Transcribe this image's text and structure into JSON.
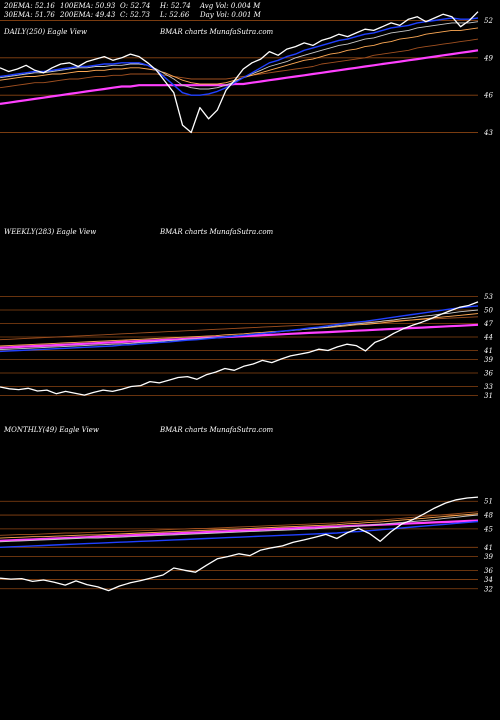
{
  "header": {
    "row1": [
      "20EMA: 52.16",
      "100EMA: 50.93",
      "O: 52.74",
      "H: 52.74",
      "Avg Vol: 0.004  M"
    ],
    "row2": [
      "30EMA: 51.76",
      "200EMA: 49.43",
      "C: 52.73",
      "L: 52.66",
      "Day Vol: 0.001 M"
    ]
  },
  "colors": {
    "background": "#000000",
    "price": "#ffffff",
    "ema20": "#2040ff",
    "ema30": "#c8c8c8",
    "ema50": "#ffaa55",
    "ema100": "#a05020",
    "ema200": "#ff40ff",
    "gridline": "#8b4513"
  },
  "chart_data": [
    {
      "type": "line",
      "title": "DAILY(250) Eagle  View",
      "watermark": "BMAR charts MunafaSutra.com",
      "yticks": [
        "52",
        "49",
        "46",
        "43"
      ],
      "ylim": [
        42,
        53
      ],
      "series": [
        {
          "key": "price",
          "values": [
            48.2,
            47.9,
            48.1,
            48.4,
            48.0,
            47.8,
            48.2,
            48.5,
            48.6,
            48.3,
            48.7,
            48.9,
            49.1,
            48.8,
            49.0,
            49.3,
            49.1,
            48.6,
            48.0,
            47.1,
            46.2,
            43.6,
            43.0,
            45.0,
            44.1,
            44.8,
            46.4,
            47.2,
            48.1,
            48.6,
            48.9,
            49.5,
            49.2,
            49.7,
            49.9,
            50.2,
            50.0,
            50.4,
            50.6,
            50.9,
            50.7,
            51.0,
            51.3,
            51.2,
            51.5,
            51.8,
            51.6,
            52.1,
            52.3,
            51.9,
            52.2,
            52.5,
            52.3,
            51.5,
            52.0,
            52.7
          ]
        },
        {
          "key": "ema20",
          "values": [
            47.5,
            47.6,
            47.7,
            47.8,
            47.9,
            47.9,
            48.0,
            48.1,
            48.2,
            48.3,
            48.3,
            48.4,
            48.5,
            48.5,
            48.6,
            48.6,
            48.6,
            48.4,
            48.0,
            47.4,
            46.8,
            46.2,
            46.0,
            46.0,
            46.1,
            46.3,
            46.6,
            47.0,
            47.4,
            47.8,
            48.2,
            48.6,
            48.8,
            49.1,
            49.3,
            49.6,
            49.8,
            50.0,
            50.2,
            50.4,
            50.5,
            50.7,
            50.9,
            51.0,
            51.2,
            51.4,
            51.5,
            51.6,
            51.8,
            51.9,
            52.0,
            52.1,
            52.2,
            52.1,
            52.1,
            52.2
          ]
        },
        {
          "key": "ema30",
          "values": [
            47.4,
            47.5,
            47.6,
            47.7,
            47.8,
            47.8,
            47.9,
            48.0,
            48.1,
            48.2,
            48.2,
            48.3,
            48.3,
            48.4,
            48.4,
            48.5,
            48.5,
            48.4,
            48.1,
            47.7,
            47.3,
            46.8,
            46.6,
            46.5,
            46.5,
            46.6,
            46.8,
            47.1,
            47.4,
            47.7,
            48.0,
            48.3,
            48.5,
            48.7,
            49.0,
            49.2,
            49.4,
            49.6,
            49.8,
            50.0,
            50.1,
            50.3,
            50.5,
            50.6,
            50.8,
            51.0,
            51.1,
            51.2,
            51.4,
            51.5,
            51.6,
            51.7,
            51.8,
            51.8,
            51.8,
            51.9
          ]
        },
        {
          "key": "ema50",
          "values": [
            47.2,
            47.3,
            47.4,
            47.5,
            47.5,
            47.6,
            47.7,
            47.7,
            47.8,
            47.9,
            47.9,
            48.0,
            48.0,
            48.1,
            48.1,
            48.2,
            48.2,
            48.1,
            48.0,
            47.8,
            47.5,
            47.2,
            47.0,
            46.9,
            46.9,
            46.9,
            47.0,
            47.2,
            47.4,
            47.6,
            47.8,
            48.0,
            48.2,
            48.4,
            48.6,
            48.8,
            48.9,
            49.1,
            49.3,
            49.4,
            49.6,
            49.7,
            49.9,
            50.0,
            50.2,
            50.3,
            50.5,
            50.6,
            50.7,
            50.9,
            51.0,
            51.1,
            51.2,
            51.2,
            51.3,
            51.4
          ]
        },
        {
          "key": "ema100",
          "values": [
            46.6,
            46.7,
            46.8,
            46.9,
            47.0,
            47.0,
            47.1,
            47.2,
            47.3,
            47.3,
            47.4,
            47.5,
            47.5,
            47.6,
            47.6,
            47.7,
            47.7,
            47.7,
            47.7,
            47.6,
            47.5,
            47.4,
            47.3,
            47.3,
            47.3,
            47.3,
            47.3,
            47.4,
            47.5,
            47.6,
            47.7,
            47.8,
            47.9,
            48.0,
            48.1,
            48.2,
            48.3,
            48.5,
            48.6,
            48.7,
            48.8,
            48.9,
            49.0,
            49.2,
            49.3,
            49.4,
            49.5,
            49.6,
            49.8,
            49.9,
            50.0,
            50.1,
            50.2,
            50.3,
            50.4,
            50.5
          ]
        },
        {
          "key": "ema200",
          "values": [
            45.3,
            45.4,
            45.5,
            45.6,
            45.7,
            45.8,
            45.9,
            46.0,
            46.1,
            46.2,
            46.3,
            46.4,
            46.5,
            46.6,
            46.7,
            46.7,
            46.8,
            46.8,
            46.8,
            46.8,
            46.8,
            46.8,
            46.8,
            46.8,
            46.8,
            46.8,
            46.8,
            46.9,
            46.9,
            47.0,
            47.1,
            47.2,
            47.3,
            47.4,
            47.5,
            47.6,
            47.7,
            47.8,
            47.9,
            48.0,
            48.1,
            48.2,
            48.3,
            48.4,
            48.5,
            48.6,
            48.7,
            48.8,
            48.9,
            49.0,
            49.1,
            49.2,
            49.3,
            49.4,
            49.5,
            49.6
          ]
        }
      ]
    },
    {
      "type": "line",
      "title": "WEEKLY(283) Eagle  View",
      "watermark": "BMAR charts MunafaSutra.com",
      "yticks": [
        "53",
        "50",
        "47",
        "44",
        "41",
        "39",
        "36",
        "33",
        "31"
      ],
      "ylim": [
        30,
        54
      ],
      "series": [
        {
          "key": "price",
          "values": [
            32.9,
            32.5,
            32.3,
            32.6,
            32.0,
            32.2,
            31.4,
            31.9,
            31.5,
            31.1,
            31.7,
            32.2,
            31.9,
            32.4,
            33.0,
            33.2,
            34.1,
            33.8,
            34.4,
            35.0,
            35.2,
            34.6,
            35.6,
            36.2,
            37.0,
            36.6,
            37.5,
            38.0,
            38.8,
            38.3,
            39.1,
            39.8,
            40.2,
            40.6,
            41.3,
            41.0,
            41.8,
            42.4,
            42.1,
            40.9,
            42.8,
            43.6,
            44.8,
            45.8,
            46.6,
            47.3,
            48.1,
            49.0,
            49.8,
            50.6,
            51.0,
            51.8
          ]
        },
        {
          "key": "ema20",
          "values": [
            40.8,
            40.9,
            41.0,
            41.1,
            41.2,
            41.3,
            41.4,
            41.5,
            41.6,
            41.7,
            41.8,
            41.9,
            42.0,
            42.2,
            42.3,
            42.5,
            42.6,
            42.8,
            42.9,
            43.1,
            43.3,
            43.4,
            43.6,
            43.8,
            44.0,
            44.2,
            44.4,
            44.6,
            44.8,
            45.0,
            45.3,
            45.5,
            45.7,
            46.0,
            46.2,
            46.5,
            46.8,
            47.1,
            47.3,
            47.5,
            47.8,
            48.1,
            48.4,
            48.7,
            49.0,
            49.3,
            49.6,
            49.9,
            50.2,
            50.5,
            50.7,
            50.9
          ]
        },
        {
          "key": "ema30",
          "values": [
            41.2,
            41.3,
            41.4,
            41.5,
            41.6,
            41.7,
            41.8,
            41.9,
            42.0,
            42.1,
            42.2,
            42.3,
            42.4,
            42.5,
            42.6,
            42.8,
            42.9,
            43.0,
            43.2,
            43.3,
            43.5,
            43.6,
            43.8,
            43.9,
            44.1,
            44.3,
            44.4,
            44.6,
            44.8,
            45.0,
            45.2,
            45.4,
            45.6,
            45.8,
            46.0,
            46.2,
            46.5,
            46.7,
            46.9,
            47.1,
            47.3,
            47.6,
            47.8,
            48.1,
            48.3,
            48.6,
            48.8,
            49.1,
            49.3,
            49.6,
            49.8,
            50.0
          ]
        },
        {
          "key": "ema50",
          "values": [
            42.0,
            42.1,
            42.2,
            42.3,
            42.4,
            42.5,
            42.6,
            42.7,
            42.8,
            42.9,
            43.0,
            43.1,
            43.2,
            43.3,
            43.4,
            43.5,
            43.6,
            43.7,
            43.8,
            43.9,
            44.0,
            44.1,
            44.2,
            44.3,
            44.5,
            44.6,
            44.7,
            44.9,
            45.0,
            45.2,
            45.3,
            45.5,
            45.6,
            45.8,
            46.0,
            46.1,
            46.3,
            46.5,
            46.7,
            46.8,
            47.0,
            47.2,
            47.4,
            47.6,
            47.8,
            48.0,
            48.2,
            48.4,
            48.6,
            48.8,
            49.0,
            49.2
          ]
        },
        {
          "key": "ema100",
          "values": [
            43.4,
            43.5,
            43.6,
            43.7,
            43.8,
            43.9,
            44.0,
            44.1,
            44.2,
            44.3,
            44.4,
            44.5,
            44.6,
            44.7,
            44.8,
            44.9,
            45.0,
            45.1,
            45.2,
            45.3,
            45.4,
            45.5,
            45.6,
            45.7,
            45.8,
            45.9,
            46.0,
            46.1,
            46.2,
            46.3,
            46.4,
            46.5,
            46.6,
            46.7,
            46.8,
            46.9,
            47.0,
            47.1,
            47.2,
            47.3,
            47.4,
            47.5,
            47.6,
            47.7,
            47.8,
            47.9,
            48.0,
            48.1,
            48.2,
            48.3,
            48.4,
            48.5
          ]
        },
        {
          "key": "ema200",
          "values": [
            41.6,
            41.7,
            41.8,
            41.9,
            42.0,
            42.1,
            42.2,
            42.3,
            42.4,
            42.5,
            42.6,
            42.7,
            42.8,
            42.9,
            43.0,
            43.1,
            43.2,
            43.3,
            43.4,
            43.5,
            43.6,
            43.7,
            43.8,
            43.9,
            44.0,
            44.1,
            44.2,
            44.3,
            44.4,
            44.5,
            44.6,
            44.7,
            44.8,
            44.9,
            45.0,
            45.1,
            45.2,
            45.3,
            45.4,
            45.5,
            45.6,
            45.7,
            45.8,
            45.9,
            46.0,
            46.1,
            46.2,
            46.3,
            46.4,
            46.5,
            46.6,
            46.7
          ]
        }
      ]
    },
    {
      "type": "line",
      "title": "MONTHLY(49) Eagle  View",
      "watermark": "BMAR charts MunafaSutra.com",
      "yticks": [
        "51",
        "48",
        "45",
        "41",
        "39",
        "36",
        "34",
        "32"
      ],
      "ylim": [
        30,
        53
      ],
      "series": [
        {
          "key": "price",
          "values": [
            34.3,
            34.1,
            34.2,
            33.6,
            33.9,
            33.4,
            32.8,
            33.7,
            32.9,
            32.4,
            31.6,
            32.6,
            33.3,
            33.8,
            34.4,
            35.0,
            36.5,
            36.0,
            35.6,
            37.1,
            38.5,
            39.0,
            39.6,
            39.2,
            40.4,
            40.9,
            41.3,
            42.1,
            42.6,
            43.2,
            43.8,
            42.9,
            44.2,
            45.1,
            44.0,
            42.3,
            44.4,
            46.1,
            47.0,
            48.2,
            49.5,
            50.6,
            51.3,
            51.7,
            51.9
          ]
        },
        {
          "key": "ema20",
          "values": [
            41.0,
            41.1,
            41.2,
            41.3,
            41.4,
            41.5,
            41.6,
            41.7,
            41.8,
            41.9,
            42.0,
            42.1,
            42.2,
            42.3,
            42.4,
            42.5,
            42.6,
            42.7,
            42.8,
            42.9,
            43.0,
            43.1,
            43.2,
            43.3,
            43.4,
            43.5,
            43.6,
            43.7,
            43.8,
            43.9,
            44.0,
            44.1,
            44.3,
            44.4,
            44.6,
            44.8,
            45.0,
            45.2,
            45.4,
            45.6,
            45.8,
            46.0,
            46.2,
            46.4,
            46.6
          ]
        },
        {
          "key": "ema30",
          "values": [
            42.2,
            42.3,
            42.4,
            42.5,
            42.6,
            42.7,
            42.8,
            42.9,
            43.0,
            43.0,
            43.1,
            43.2,
            43.3,
            43.4,
            43.5,
            43.6,
            43.7,
            43.8,
            43.9,
            44.0,
            44.1,
            44.2,
            44.3,
            44.4,
            44.5,
            44.6,
            44.7,
            44.8,
            44.9,
            45.0,
            45.2,
            45.3,
            45.5,
            45.6,
            45.8,
            46.0,
            46.2,
            46.4,
            46.6,
            46.8,
            47.0,
            47.3,
            47.5,
            47.8,
            48.0
          ]
        },
        {
          "key": "ema50",
          "values": [
            43.0,
            43.1,
            43.2,
            43.3,
            43.3,
            43.4,
            43.5,
            43.6,
            43.7,
            43.7,
            43.8,
            43.9,
            44.0,
            44.1,
            44.2,
            44.3,
            44.4,
            44.5,
            44.6,
            44.7,
            44.8,
            44.9,
            45.0,
            45.1,
            45.2,
            45.3,
            45.4,
            45.5,
            45.6,
            45.7,
            45.8,
            45.9,
            46.1,
            46.2,
            46.4,
            46.5,
            46.7,
            46.9,
            47.1,
            47.3,
            47.5,
            47.7,
            47.9,
            48.1,
            48.3
          ]
        },
        {
          "key": "ema100",
          "values": [
            43.6,
            43.7,
            43.8,
            43.8,
            43.9,
            44.0,
            44.1,
            44.1,
            44.2,
            44.3,
            44.4,
            44.4,
            44.5,
            44.6,
            44.7,
            44.8,
            44.9,
            45.0,
            45.1,
            45.1,
            45.2,
            45.3,
            45.4,
            45.5,
            45.6,
            45.7,
            45.8,
            45.9,
            46.0,
            46.1,
            46.2,
            46.3,
            46.5,
            46.6,
            46.8,
            46.9,
            47.1,
            47.3,
            47.5,
            47.7,
            47.9,
            48.1,
            48.3,
            48.5,
            48.7
          ]
        },
        {
          "key": "ema200",
          "values": [
            42.4,
            42.5,
            42.6,
            42.7,
            42.8,
            42.9,
            43.0,
            43.1,
            43.2,
            43.3,
            43.4,
            43.5,
            43.6,
            43.7,
            43.8,
            43.9,
            44.0,
            44.1,
            44.2,
            44.3,
            44.4,
            44.5,
            44.6,
            44.7,
            44.8,
            44.9,
            45.0,
            45.1,
            45.2,
            45.3,
            45.4,
            45.5,
            45.6,
            45.7,
            45.8,
            45.9,
            46.0,
            46.1,
            46.2,
            46.3,
            46.4,
            46.5,
            46.6,
            46.7,
            46.8
          ]
        }
      ]
    }
  ]
}
